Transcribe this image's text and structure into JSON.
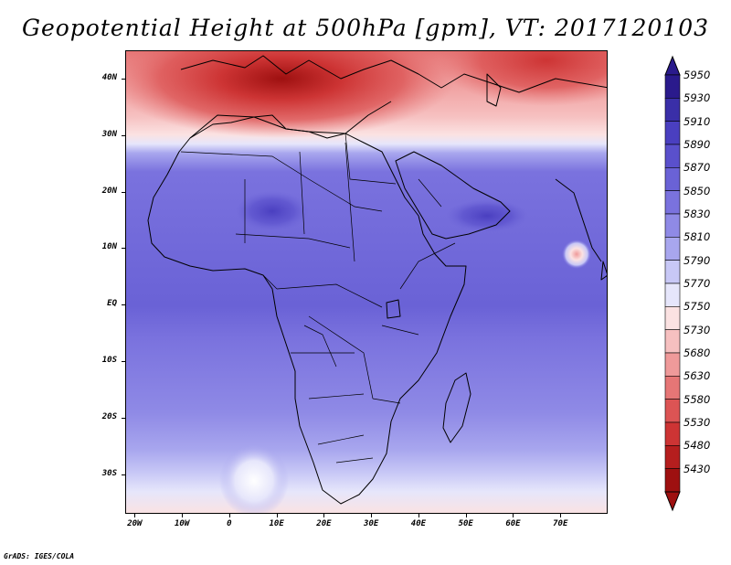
{
  "title": "Geopotential Height at 500hPa [gpm], VT: 2017120103",
  "credit": "GrADS: IGES/COLA",
  "map": {
    "lat_range": [
      -37,
      45
    ],
    "lon_range": [
      -22,
      80
    ],
    "lat_ticks": [
      {
        "lat": 40,
        "label": "40N"
      },
      {
        "lat": 30,
        "label": "30N"
      },
      {
        "lat": 20,
        "label": "20N"
      },
      {
        "lat": 10,
        "label": "10N"
      },
      {
        "lat": 0,
        "label": "EQ"
      },
      {
        "lat": -10,
        "label": "10S"
      },
      {
        "lat": -20,
        "label": "20S"
      },
      {
        "lat": -30,
        "label": "30S"
      }
    ],
    "lon_ticks": [
      {
        "lon": -20,
        "label": "20W"
      },
      {
        "lon": -10,
        "label": "10W"
      },
      {
        "lon": 0,
        "label": "0"
      },
      {
        "lon": 10,
        "label": "10E"
      },
      {
        "lon": 20,
        "label": "20E"
      },
      {
        "lon": 30,
        "label": "30E"
      },
      {
        "lon": 40,
        "label": "40E"
      },
      {
        "lon": 50,
        "label": "50E"
      },
      {
        "lon": 60,
        "label": "60E"
      },
      {
        "lon": 70,
        "label": "70E"
      }
    ]
  },
  "colorbar": {
    "levels": [
      "5950",
      "5930",
      "5910",
      "5890",
      "5870",
      "5850",
      "5830",
      "5810",
      "5790",
      "5770",
      "5750",
      "5730",
      "5680",
      "5630",
      "5580",
      "5530",
      "5480",
      "5430"
    ],
    "colors": [
      "#2a1a8c",
      "#3a2fa8",
      "#4a3fc0",
      "#5a50cc",
      "#6a62d6",
      "#7a72de",
      "#8f8ae6",
      "#a8a6ee",
      "#c8c8f6",
      "#e6e6fb",
      "#fbe2e2",
      "#f6c0c0",
      "#ef9a9a",
      "#e67676",
      "#dc5454",
      "#cd3434",
      "#b51e1e",
      "#9e1010"
    ]
  }
}
